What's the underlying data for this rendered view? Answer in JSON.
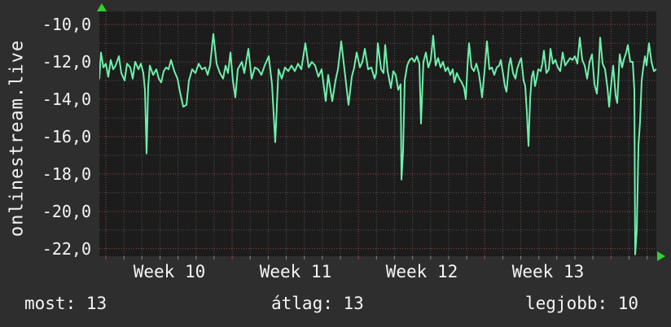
{
  "title": {
    "vertical_label": "onlinestream.live"
  },
  "colors": {
    "background": "#2e2e2e",
    "plot_background": "#1c1c1c",
    "line": "#6df0ab",
    "grid_major": "#a04545",
    "grid_minor": "#545454",
    "tick_minor": "#8a8a8a",
    "text": "#f5f5f5",
    "axis_arrow": "#2fd32f"
  },
  "footer": {
    "items": [
      {
        "label": "most",
        "value": "13",
        "text": "most: 13"
      },
      {
        "label": "átlag",
        "value": "13",
        "text": "átlag: 13"
      },
      {
        "label": "legjobb",
        "value": "10",
        "text": "legjobb: 10"
      }
    ]
  },
  "chart_data": {
    "type": "line",
    "title": "onlinestream.live",
    "xlabel": "",
    "ylabel": "",
    "legend_position": "none",
    "grid": true,
    "ylim": [
      -22.4,
      -9.3
    ],
    "y_tick_labels": [
      "-10,0",
      "-12,0",
      "-14,0",
      "-16,0",
      "-18,0",
      "-20,0",
      "-22,0"
    ],
    "y_major_values": [
      -10,
      -12,
      -14,
      -16,
      -18,
      -20,
      -22
    ],
    "y_minor_values": [
      -11,
      -13,
      -15,
      -17,
      -19,
      -21
    ],
    "x_labels": [
      "Week 10",
      "Week 11",
      "Week 12",
      "Week 13"
    ],
    "x_axis": {
      "unit": "days",
      "days_shown": 31,
      "week_marks_at_days": [
        0,
        7,
        14,
        21,
        28
      ]
    },
    "stats": {
      "most": 13,
      "atlag": 13,
      "legjobb": 10
    },
    "series": [
      {
        "name": "onlinestream.live level",
        "x_unit": "px-from-plot-left (22.153 px per day)",
        "points": [
          [
            0,
            -12.9
          ],
          [
            2,
            -11.5
          ],
          [
            5,
            -12.3
          ],
          [
            8,
            -12.1
          ],
          [
            11,
            -12.8
          ],
          [
            14,
            -11.9
          ],
          [
            17,
            -12.4
          ],
          [
            20,
            -12.2
          ],
          [
            24,
            -11.7
          ],
          [
            27,
            -12.6
          ],
          [
            31,
            -13.0
          ],
          [
            34,
            -12.1
          ],
          [
            38,
            -12.3
          ],
          [
            41,
            -12.9
          ],
          [
            44,
            -12.0
          ],
          [
            48,
            -12.4
          ],
          [
            51,
            -12.1
          ],
          [
            54,
            -12.6
          ],
          [
            56,
            -13.5
          ],
          [
            58,
            -16.9
          ],
          [
            60,
            -13.3
          ],
          [
            62,
            -12.2
          ],
          [
            66,
            -12.7
          ],
          [
            70,
            -12.4
          ],
          [
            73,
            -12.9
          ],
          [
            76,
            -13.1
          ],
          [
            79,
            -12.5
          ],
          [
            82,
            -12.3
          ],
          [
            85,
            -12.4
          ],
          [
            88,
            -11.9
          ],
          [
            92,
            -12.5
          ],
          [
            96,
            -12.9
          ],
          [
            99,
            -13.6
          ],
          [
            103,
            -14.4
          ],
          [
            107,
            -14.3
          ],
          [
            110,
            -13.0
          ],
          [
            114,
            -12.4
          ],
          [
            118,
            -12.6
          ],
          [
            122,
            -12.1
          ],
          [
            126,
            -12.4
          ],
          [
            130,
            -12.3
          ],
          [
            133,
            -12.7
          ],
          [
            136,
            -12.2
          ],
          [
            140,
            -10.5
          ],
          [
            144,
            -12.1
          ],
          [
            148,
            -12.6
          ],
          [
            152,
            -12.9
          ],
          [
            155,
            -12.2
          ],
          [
            158,
            -12.6
          ],
          [
            161,
            -11.5
          ],
          [
            164,
            -13.0
          ],
          [
            167,
            -13.9
          ],
          [
            170,
            -12.4
          ],
          [
            175,
            -12.0
          ],
          [
            178,
            -12.6
          ],
          [
            183,
            -11.3
          ],
          [
            187,
            -12.9
          ],
          [
            191,
            -12.3
          ],
          [
            195,
            -12.4
          ],
          [
            199,
            -12.7
          ],
          [
            203,
            -12.2
          ],
          [
            208,
            -11.7
          ],
          [
            212,
            -13.2
          ],
          [
            216,
            -16.3
          ],
          [
            220,
            -12.4
          ],
          [
            224,
            -12.9
          ],
          [
            228,
            -12.3
          ],
          [
            232,
            -12.5
          ],
          [
            236,
            -12.2
          ],
          [
            240,
            -12.5
          ],
          [
            244,
            -12.1
          ],
          [
            248,
            -12.4
          ],
          [
            253,
            -11.0
          ],
          [
            257,
            -12.3
          ],
          [
            261,
            -12.0
          ],
          [
            265,
            -12.2
          ],
          [
            269,
            -12.8
          ],
          [
            273,
            -12.4
          ],
          [
            278,
            -14.1
          ],
          [
            281,
            -12.7
          ],
          [
            286,
            -14.1
          ],
          [
            290,
            -13.0
          ],
          [
            293,
            -12.4
          ],
          [
            297,
            -10.9
          ],
          [
            301,
            -12.4
          ],
          [
            306,
            -14.3
          ],
          [
            310,
            -12.8
          ],
          [
            313,
            -12.3
          ],
          [
            316,
            -11.5
          ],
          [
            320,
            -12.3
          ],
          [
            323,
            -12.0
          ],
          [
            326,
            -11.3
          ],
          [
            330,
            -12.4
          ],
          [
            334,
            -12.3
          ],
          [
            338,
            -12.9
          ],
          [
            340,
            -12.6
          ],
          [
            342,
            -11.0
          ],
          [
            346,
            -12.4
          ],
          [
            349,
            -12.6
          ],
          [
            351,
            -11.1
          ],
          [
            354,
            -12.5
          ],
          [
            358,
            -13.4
          ],
          [
            361,
            -12.5
          ],
          [
            364,
            -12.7
          ],
          [
            367,
            -13.5
          ],
          [
            370,
            -13.2
          ],
          [
            371,
            -18.3
          ],
          [
            373,
            -16.8
          ],
          [
            375,
            -13.0
          ],
          [
            378,
            -12.2
          ],
          [
            381,
            -11.9
          ],
          [
            384,
            -11.8
          ],
          [
            387,
            -12.0
          ],
          [
            390,
            -11.7
          ],
          [
            393,
            -12.1
          ],
          [
            395,
            -15.3
          ],
          [
            398,
            -12.0
          ],
          [
            401,
            -11.5
          ],
          [
            404,
            -12.3
          ],
          [
            407,
            -11.9
          ],
          [
            410,
            -10.6
          ],
          [
            413,
            -12.2
          ],
          [
            416,
            -11.8
          ],
          [
            419,
            -12.3
          ],
          [
            422,
            -12.0
          ],
          [
            425,
            -12.5
          ],
          [
            428,
            -12.3
          ],
          [
            431,
            -12.7
          ],
          [
            434,
            -12.4
          ],
          [
            436,
            -13.1
          ],
          [
            439,
            -12.6
          ],
          [
            442,
            -12.9
          ],
          [
            445,
            -13.1
          ],
          [
            448,
            -13.4
          ],
          [
            450,
            -14.0
          ],
          [
            452,
            -12.3
          ],
          [
            454,
            -11.0
          ],
          [
            457,
            -12.3
          ],
          [
            460,
            -12.5
          ],
          [
            463,
            -12.1
          ],
          [
            466,
            -12.6
          ],
          [
            468,
            -13.2
          ],
          [
            470,
            -13.9
          ],
          [
            473,
            -12.5
          ],
          [
            476,
            -10.9
          ],
          [
            479,
            -12.4
          ],
          [
            482,
            -12.3
          ],
          [
            485,
            -12.7
          ],
          [
            488,
            -12.3
          ],
          [
            491,
            -12.2
          ],
          [
            493,
            -11.9
          ],
          [
            496,
            -12.7
          ],
          [
            498,
            -13.3
          ],
          [
            500,
            -13.6
          ],
          [
            503,
            -12.2
          ],
          [
            505,
            -11.8
          ],
          [
            508,
            -12.6
          ],
          [
            511,
            -12.9
          ],
          [
            513,
            -12.4
          ],
          [
            516,
            -12.0
          ],
          [
            518,
            -11.8
          ],
          [
            521,
            -13.0
          ],
          [
            523,
            -13.3
          ],
          [
            525,
            -14.7
          ],
          [
            527,
            -16.5
          ],
          [
            529,
            -14.0
          ],
          [
            531,
            -12.8
          ],
          [
            533,
            -12.5
          ],
          [
            535,
            -13.3
          ],
          [
            537,
            -12.9
          ],
          [
            539,
            -12.4
          ],
          [
            542,
            -12.5
          ],
          [
            544,
            -12.1
          ],
          [
            546,
            -11.4
          ],
          [
            549,
            -12.6
          ],
          [
            552,
            -12.4
          ],
          [
            554,
            -11.3
          ],
          [
            557,
            -12.1
          ],
          [
            560,
            -11.9
          ],
          [
            563,
            -12.3
          ],
          [
            566,
            -12.5
          ],
          [
            569,
            -11.5
          ],
          [
            572,
            -12.2
          ],
          [
            575,
            -12.0
          ],
          [
            578,
            -11.8
          ],
          [
            581,
            -11.9
          ],
          [
            584,
            -11.7
          ],
          [
            587,
            -12.1
          ],
          [
            590,
            -10.7
          ],
          [
            593,
            -11.9
          ],
          [
            596,
            -12.2
          ],
          [
            599,
            -12.9
          ],
          [
            602,
            -12.0
          ],
          [
            605,
            -11.6
          ],
          [
            608,
            -13.2
          ],
          [
            611,
            -13.7
          ],
          [
            613,
            -12.5
          ],
          [
            615,
            -10.7
          ],
          [
            618,
            -12.1
          ],
          [
            621,
            -12.4
          ],
          [
            624,
            -13.4
          ],
          [
            626,
            -14.4
          ],
          [
            629,
            -13.0
          ],
          [
            631,
            -12.2
          ],
          [
            634,
            -13.8
          ],
          [
            636,
            -14.2
          ],
          [
            639,
            -11.6
          ],
          [
            642,
            -12.3
          ],
          [
            644,
            -11.9
          ],
          [
            647,
            -11.5
          ],
          [
            649,
            -11.1
          ],
          [
            652,
            -12.0
          ],
          [
            655,
            -12.0
          ],
          [
            657,
            -13.5
          ],
          [
            658,
            -22.3
          ],
          [
            660,
            -21.0
          ],
          [
            662,
            -16.5
          ],
          [
            664,
            -15.2
          ],
          [
            666,
            -13.0
          ],
          [
            668,
            -12.3
          ],
          [
            670,
            -11.7
          ],
          [
            672,
            -12.2
          ],
          [
            675,
            -11.0
          ],
          [
            678,
            -12.0
          ],
          [
            681,
            -12.5
          ],
          [
            684,
            -12.4
          ]
        ]
      }
    ]
  }
}
